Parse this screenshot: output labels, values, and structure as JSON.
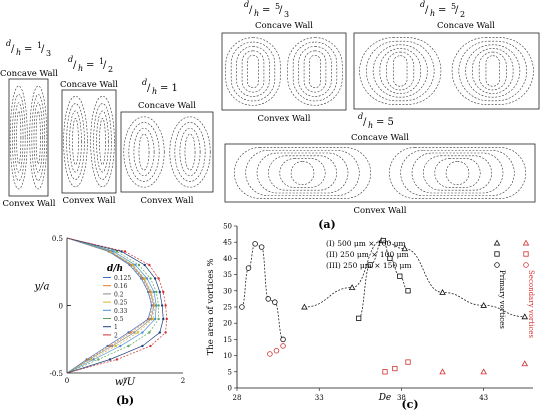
{
  "panel_a": {
    "panel_label": "(a)",
    "concave_label": "Concave Wall",
    "convex_label": "Convex Wall",
    "ratios": [
      {
        "num": "d",
        "den": "h",
        "eq": "= ",
        "vnum": "1",
        "vden": "3"
      },
      {
        "num": "d",
        "den": "h",
        "eq": "= ",
        "vnum": "1",
        "vden": "2"
      },
      {
        "num": "d",
        "den": "h",
        "eq": "= 1",
        "vnum": "",
        "vden": ""
      },
      {
        "num": "d",
        "den": "h",
        "eq": "= ",
        "vnum": "5",
        "vden": "3"
      },
      {
        "num": "d",
        "den": "h",
        "eq": "= ",
        "vnum": "5",
        "vden": "2"
      },
      {
        "num": "d",
        "den": "h",
        "eq": "= 5",
        "vnum": "",
        "vden": ""
      }
    ]
  },
  "chart_data": [
    {
      "type": "line",
      "panel_label": "(b)",
      "xlabel": "w/U",
      "ylabel": "y/a",
      "xlim": [
        0,
        2
      ],
      "ylim": [
        -0.5,
        0.5
      ],
      "xticks": [
        "0",
        "1",
        "2"
      ],
      "yticks": [
        "0.5",
        "0",
        "-0.5"
      ],
      "legend_title": "d/h",
      "series": [
        {
          "name": "0.125",
          "color": "#3a6fc4"
        },
        {
          "name": "0.16",
          "color": "#e07b2a"
        },
        {
          "name": "0.2",
          "color": "#8a8a8a"
        },
        {
          "name": "0.25",
          "color": "#d8b42a"
        },
        {
          "name": "0.33",
          "color": "#4a90d9"
        },
        {
          "name": "0.5",
          "color": "#5aa65a"
        },
        {
          "name": "1",
          "color": "#1f3d7a"
        },
        {
          "name": "2",
          "color": "#d03030"
        }
      ],
      "profiles": [
        {
          "color": "#3a6fc4",
          "y": [
            0.5,
            0.4,
            0.3,
            0.2,
            0.1,
            0.0,
            -0.1,
            -0.2,
            -0.3,
            -0.4,
            -0.5
          ],
          "w": [
            0.0,
            0.72,
            1.08,
            1.28,
            1.4,
            1.46,
            1.4,
            1.06,
            0.7,
            0.34,
            0.0
          ]
        },
        {
          "color": "#e07b2a",
          "y": [
            0.5,
            0.4,
            0.3,
            0.2,
            0.1,
            0.0,
            -0.1,
            -0.2,
            -0.3,
            -0.4,
            -0.5
          ],
          "w": [
            0.0,
            0.73,
            1.1,
            1.3,
            1.42,
            1.48,
            1.42,
            1.1,
            0.74,
            0.36,
            0.0
          ]
        },
        {
          "color": "#8a8a8a",
          "y": [
            0.5,
            0.4,
            0.3,
            0.2,
            0.1,
            0.0,
            -0.1,
            -0.2,
            -0.3,
            -0.4,
            -0.5
          ],
          "w": [
            0.0,
            0.74,
            1.12,
            1.32,
            1.44,
            1.5,
            1.45,
            1.16,
            0.78,
            0.38,
            0.0
          ]
        },
        {
          "color": "#d8b42a",
          "y": [
            0.5,
            0.4,
            0.3,
            0.2,
            0.1,
            0.0,
            -0.1,
            -0.2,
            -0.3,
            -0.4,
            -0.5
          ],
          "w": [
            0.0,
            0.76,
            1.14,
            1.34,
            1.46,
            1.52,
            1.48,
            1.22,
            0.84,
            0.42,
            0.0
          ]
        },
        {
          "color": "#4a90d9",
          "y": [
            0.5,
            0.4,
            0.3,
            0.2,
            0.1,
            0.0,
            -0.1,
            -0.2,
            -0.3,
            -0.4,
            -0.5
          ],
          "w": [
            0.0,
            0.8,
            1.18,
            1.38,
            1.5,
            1.54,
            1.52,
            1.3,
            0.92,
            0.46,
            0.0
          ]
        },
        {
          "color": "#5aa65a",
          "y": [
            0.5,
            0.4,
            0.3,
            0.2,
            0.1,
            0.0,
            -0.1,
            -0.2,
            -0.3,
            -0.4,
            -0.5
          ],
          "w": [
            0.0,
            0.86,
            1.24,
            1.44,
            1.54,
            1.58,
            1.58,
            1.42,
            1.06,
            0.54,
            0.0
          ]
        },
        {
          "color": "#1f3d7a",
          "y": [
            0.5,
            0.4,
            0.3,
            0.2,
            0.1,
            0.0,
            -0.1,
            -0.2,
            -0.3,
            -0.4,
            -0.5
          ],
          "w": [
            0.0,
            0.94,
            1.34,
            1.52,
            1.6,
            1.64,
            1.66,
            1.6,
            1.3,
            0.74,
            0.0
          ]
        },
        {
          "color": "#d03030",
          "y": [
            0.5,
            0.4,
            0.3,
            0.2,
            0.1,
            0.0,
            -0.1,
            -0.2,
            -0.3,
            -0.4,
            -0.5
          ],
          "w": [
            0.0,
            1.0,
            1.42,
            1.58,
            1.66,
            1.7,
            1.72,
            1.7,
            1.44,
            0.86,
            0.0
          ]
        }
      ]
    },
    {
      "type": "scatter",
      "panel_label": "(c)",
      "xlabel": "De",
      "ylabel": "The area of vortices %",
      "xlim": [
        28,
        46
      ],
      "ylim": [
        0,
        50
      ],
      "xticks": [
        28,
        33,
        38,
        43
      ],
      "yticks": [
        0,
        5,
        10,
        15,
        20,
        25,
        30,
        35,
        40,
        45,
        50
      ],
      "legend": [
        {
          "label": "(I) 500 μm × 100 μm",
          "marker": "triangle"
        },
        {
          "label": "(II) 250 μm × 100 μm",
          "marker": "square"
        },
        {
          "label": "(III) 250 μm × 150 μm",
          "marker": "circle"
        }
      ],
      "primary_label": "Primary vortices",
      "secondary_label": "Secondary vortices",
      "series": [
        {
          "name": "(I) primary",
          "marker": "triangle",
          "color": "#111111",
          "curve": true,
          "points": [
            [
              32.1,
              25
            ],
            [
              35.0,
              31
            ],
            [
              36.8,
              45.5
            ],
            [
              38.2,
              43
            ],
            [
              40.5,
              29.5
            ],
            [
              43.0,
              25.5
            ],
            [
              45.5,
              22
            ]
          ]
        },
        {
          "name": "(II) primary",
          "marker": "square",
          "color": "#111111",
          "curve": true,
          "points": [
            [
              35.4,
              21.5
            ],
            [
              36.1,
              38
            ],
            [
              36.9,
              45.5
            ],
            [
              37.3,
              40
            ],
            [
              37.9,
              34.5
            ],
            [
              38.4,
              30
            ]
          ]
        },
        {
          "name": "(III) primary",
          "marker": "circle",
          "color": "#111111",
          "curve": true,
          "points": [
            [
              28.3,
              25
            ],
            [
              28.7,
              37
            ],
            [
              29.1,
              44.5
            ],
            [
              29.5,
              43.5
            ],
            [
              29.9,
              27.5
            ],
            [
              30.3,
              26.5
            ],
            [
              30.8,
              15
            ]
          ]
        },
        {
          "name": "(I) secondary",
          "marker": "triangle",
          "color": "#d03030",
          "curve": false,
          "points": [
            [
              40.5,
              5
            ],
            [
              43.0,
              5
            ],
            [
              45.5,
              7.5
            ]
          ]
        },
        {
          "name": "(II) secondary",
          "marker": "square",
          "color": "#d03030",
          "curve": false,
          "points": [
            [
              37.0,
              5
            ],
            [
              37.6,
              6
            ],
            [
              38.4,
              8
            ]
          ]
        },
        {
          "name": "(III) secondary",
          "marker": "circle",
          "color": "#d03030",
          "curve": false,
          "points": [
            [
              30.0,
              10.5
            ],
            [
              30.4,
              11.5
            ],
            [
              30.8,
              13
            ]
          ]
        }
      ]
    }
  ]
}
